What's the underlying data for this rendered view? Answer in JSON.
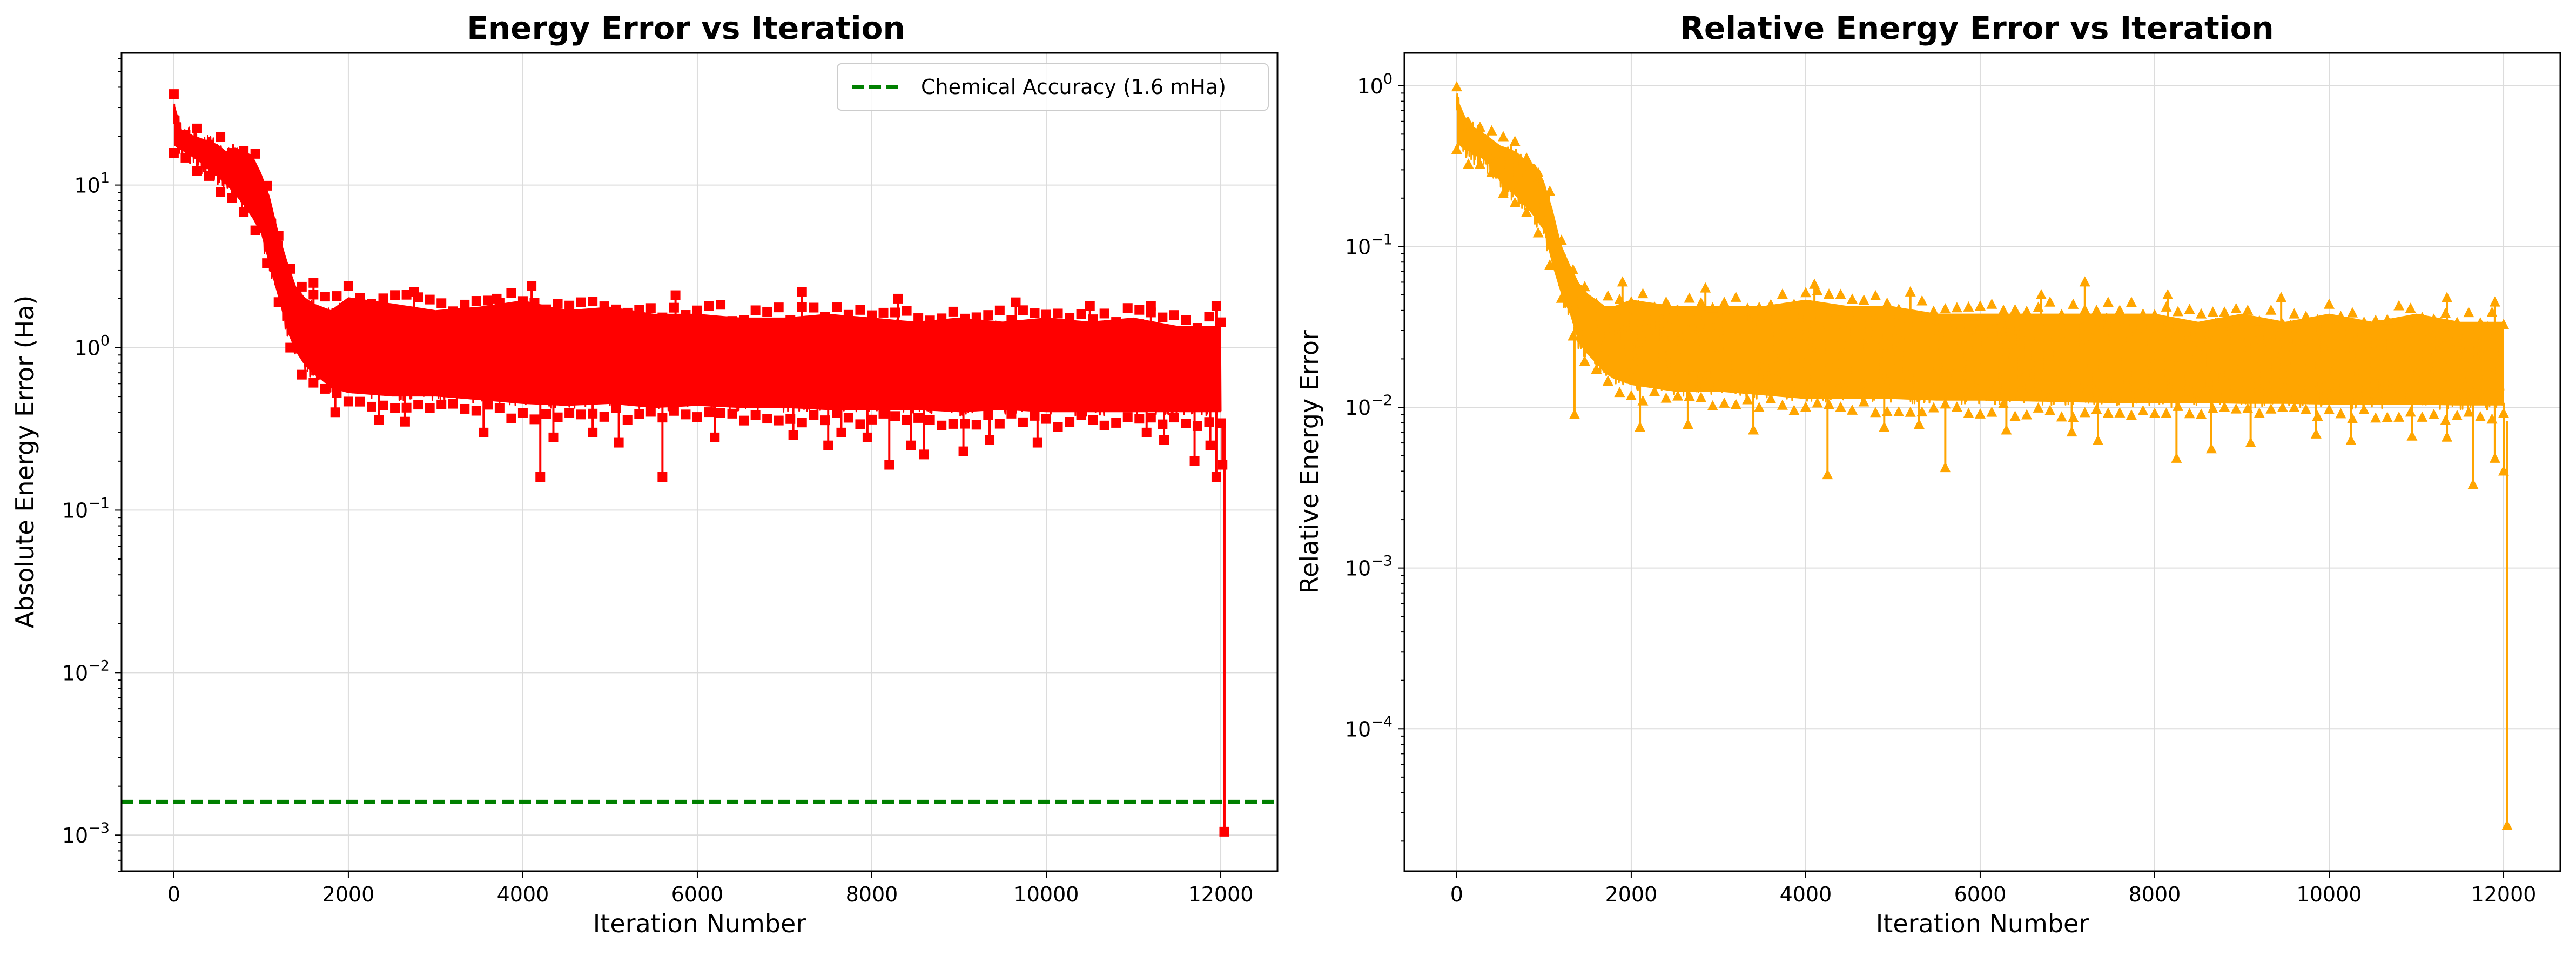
{
  "chart_data": [
    {
      "type": "line",
      "title": "Energy Error vs Iteration",
      "xlabel": "Iteration Number",
      "ylabel": "Absolute Energy Error (Ha)",
      "yscale": "log",
      "xlim": [
        -600,
        12650
      ],
      "ylim": [
        0.0006,
        65
      ],
      "xticks": [
        0,
        2000,
        4000,
        6000,
        8000,
        10000,
        12000
      ],
      "yticks": [
        {
          "value": 0.001,
          "mantissa": "10",
          "exp": "−3"
        },
        {
          "value": 0.01,
          "mantissa": "10",
          "exp": "−2"
        },
        {
          "value": 0.1,
          "mantissa": "10",
          "exp": "−1"
        },
        {
          "value": 1,
          "mantissa": "10",
          "exp": "0"
        },
        {
          "value": 10,
          "mantissa": "10",
          "exp": "1"
        }
      ],
      "grid": true,
      "legend_position": "upper-right",
      "series": [
        {
          "name": "Absolute Energy Error",
          "color": "#ff0000",
          "marker": "square",
          "x": [
            0,
            100,
            200,
            300,
            400,
            500,
            600,
            700,
            800,
            900,
            1000,
            1100,
            1200,
            1300,
            1400,
            1500,
            1600,
            1700,
            1800,
            2000,
            2500,
            3000,
            3500,
            4000,
            4500,
            5000,
            5500,
            6000,
            6500,
            7000,
            7500,
            8000,
            8500,
            9000,
            9500,
            10000,
            10500,
            11000,
            11500,
            11900,
            12000,
            12030,
            12050
          ],
          "upper": [
            38,
            25,
            24,
            23,
            22,
            21,
            19,
            20,
            19,
            18,
            14,
            10,
            6,
            4,
            2.8,
            2.4,
            2.2,
            2.1,
            2.0,
            2.4,
            2.2,
            2.0,
            2.1,
            2.3,
            2.0,
            2.1,
            1.9,
            1.9,
            1.8,
            1.8,
            1.9,
            1.8,
            1.7,
            1.8,
            1.7,
            1.8,
            1.7,
            1.8,
            1.6,
            1.6,
            1.6,
            1.3,
            1.3
          ],
          "lower": [
            14,
            13,
            12,
            11,
            10,
            9,
            8,
            7,
            6,
            5,
            4,
            2.5,
            1.6,
            1.0,
            0.75,
            0.62,
            0.55,
            0.5,
            0.45,
            0.42,
            0.4,
            0.4,
            0.38,
            0.36,
            0.35,
            0.36,
            0.34,
            0.35,
            0.34,
            0.34,
            0.33,
            0.33,
            0.33,
            0.32,
            0.33,
            0.32,
            0.32,
            0.32,
            0.32,
            0.32,
            0.32,
            0.25,
            0.0011
          ],
          "dips": [
            {
              "x": 1850,
              "y": 0.4
            },
            {
              "x": 2350,
              "y": 0.36
            },
            {
              "x": 2650,
              "y": 0.35
            },
            {
              "x": 3550,
              "y": 0.3
            },
            {
              "x": 4200,
              "y": 0.16
            },
            {
              "x": 4350,
              "y": 0.28
            },
            {
              "x": 4800,
              "y": 0.3
            },
            {
              "x": 5100,
              "y": 0.26
            },
            {
              "x": 5600,
              "y": 0.16
            },
            {
              "x": 6200,
              "y": 0.28
            },
            {
              "x": 7100,
              "y": 0.29
            },
            {
              "x": 7500,
              "y": 0.25
            },
            {
              "x": 7650,
              "y": 0.3
            },
            {
              "x": 7950,
              "y": 0.28
            },
            {
              "x": 8200,
              "y": 0.19
            },
            {
              "x": 8450,
              "y": 0.25
            },
            {
              "x": 8600,
              "y": 0.22
            },
            {
              "x": 9050,
              "y": 0.23
            },
            {
              "x": 9350,
              "y": 0.27
            },
            {
              "x": 9900,
              "y": 0.26
            },
            {
              "x": 11150,
              "y": 0.3
            },
            {
              "x": 11350,
              "y": 0.27
            },
            {
              "x": 11700,
              "y": 0.2
            },
            {
              "x": 11880,
              "y": 0.25
            },
            {
              "x": 11950,
              "y": 0.16
            },
            {
              "x": 12020,
              "y": 0.19
            }
          ],
          "spikes": [
            {
              "x": 1600,
              "y": 2.5
            },
            {
              "x": 2750,
              "y": 2.2
            },
            {
              "x": 3700,
              "y": 2.0
            },
            {
              "x": 4100,
              "y": 2.4
            },
            {
              "x": 5750,
              "y": 2.1
            },
            {
              "x": 7200,
              "y": 2.2
            },
            {
              "x": 8300,
              "y": 2.0
            },
            {
              "x": 9650,
              "y": 1.9
            },
            {
              "x": 10500,
              "y": 1.8
            },
            {
              "x": 11200,
              "y": 1.8
            },
            {
              "x": 11950,
              "y": 1.8
            }
          ],
          "last_point": {
            "x": 12040,
            "y": 0.00105
          }
        }
      ],
      "reference_lines": [
        {
          "label": "Chemical Accuracy (1.6 mHa)",
          "y": 0.0016,
          "color": "#008000",
          "style": "dashed"
        }
      ]
    },
    {
      "type": "line",
      "title": "Relative Energy Error vs Iteration",
      "xlabel": "Iteration Number",
      "ylabel": "Relative Energy Error",
      "yscale": "log",
      "xlim": [
        -600,
        12650
      ],
      "ylim": [
        1.3e-05,
        1.6
      ],
      "xticks": [
        0,
        2000,
        4000,
        6000,
        8000,
        10000,
        12000
      ],
      "yticks": [
        {
          "value": 0.0001,
          "mantissa": "10",
          "exp": "−4"
        },
        {
          "value": 0.001,
          "mantissa": "10",
          "exp": "−3"
        },
        {
          "value": 0.01,
          "mantissa": "10",
          "exp": "−2"
        },
        {
          "value": 0.1,
          "mantissa": "10",
          "exp": "−1"
        },
        {
          "value": 1,
          "mantissa": "10",
          "exp": "0"
        }
      ],
      "grid": true,
      "series": [
        {
          "name": "Relative Energy Error",
          "color": "#ffa500",
          "marker": "triangle",
          "x": [
            0,
            100,
            200,
            300,
            400,
            500,
            600,
            700,
            800,
            900,
            1000,
            1100,
            1200,
            1300,
            1400,
            1500,
            1600,
            1700,
            1800,
            2000,
            2500,
            3000,
            3500,
            4000,
            4500,
            5000,
            5500,
            6000,
            6500,
            7000,
            7500,
            8000,
            8500,
            9000,
            9500,
            10000,
            10500,
            11000,
            11500,
            11900,
            12000,
            12030,
            12050
          ],
          "upper": [
            1.0,
            0.75,
            0.65,
            0.6,
            0.55,
            0.5,
            0.48,
            0.45,
            0.4,
            0.38,
            0.3,
            0.2,
            0.12,
            0.09,
            0.07,
            0.06,
            0.055,
            0.05,
            0.05,
            0.055,
            0.05,
            0.05,
            0.05,
            0.055,
            0.05,
            0.05,
            0.045,
            0.045,
            0.045,
            0.045,
            0.045,
            0.045,
            0.04,
            0.045,
            0.04,
            0.045,
            0.04,
            0.045,
            0.04,
            0.04,
            0.04,
            0.035,
            0.035
          ],
          "lower": [
            0.35,
            0.32,
            0.3,
            0.28,
            0.25,
            0.2,
            0.18,
            0.16,
            0.14,
            0.12,
            0.1,
            0.06,
            0.04,
            0.03,
            0.02,
            0.017,
            0.015,
            0.013,
            0.012,
            0.011,
            0.01,
            0.01,
            0.0095,
            0.009,
            0.009,
            0.009,
            0.0088,
            0.0088,
            0.0087,
            0.0086,
            0.0085,
            0.0085,
            0.0085,
            0.0084,
            0.0084,
            0.0083,
            0.0083,
            0.0083,
            0.0082,
            0.0082,
            0.0082,
            0.006,
            2.7e-05
          ],
          "dips": [
            {
              "x": 1350,
              "y": 0.009
            },
            {
              "x": 2100,
              "y": 0.0075
            },
            {
              "x": 2650,
              "y": 0.0078
            },
            {
              "x": 3400,
              "y": 0.0072
            },
            {
              "x": 4250,
              "y": 0.0038
            },
            {
              "x": 4900,
              "y": 0.0075
            },
            {
              "x": 5300,
              "y": 0.0078
            },
            {
              "x": 5600,
              "y": 0.0042
            },
            {
              "x": 6300,
              "y": 0.0072
            },
            {
              "x": 7050,
              "y": 0.007
            },
            {
              "x": 7350,
              "y": 0.0062
            },
            {
              "x": 8250,
              "y": 0.0048
            },
            {
              "x": 8650,
              "y": 0.0055
            },
            {
              "x": 9100,
              "y": 0.006
            },
            {
              "x": 9850,
              "y": 0.0068
            },
            {
              "x": 10250,
              "y": 0.0062
            },
            {
              "x": 10950,
              "y": 0.0066
            },
            {
              "x": 11350,
              "y": 0.0065
            },
            {
              "x": 11650,
              "y": 0.0033
            },
            {
              "x": 11900,
              "y": 0.0048
            },
            {
              "x": 12000,
              "y": 0.004
            }
          ],
          "spikes": [
            {
              "x": 1900,
              "y": 0.06
            },
            {
              "x": 2850,
              "y": 0.055
            },
            {
              "x": 4100,
              "y": 0.058
            },
            {
              "x": 5200,
              "y": 0.052
            },
            {
              "x": 6700,
              "y": 0.05
            },
            {
              "x": 7200,
              "y": 0.06
            },
            {
              "x": 8150,
              "y": 0.05
            },
            {
              "x": 9450,
              "y": 0.048
            },
            {
              "x": 11350,
              "y": 0.048
            },
            {
              "x": 11900,
              "y": 0.045
            }
          ],
          "last_point": {
            "x": 12040,
            "y": 2.5e-05
          }
        }
      ]
    }
  ]
}
